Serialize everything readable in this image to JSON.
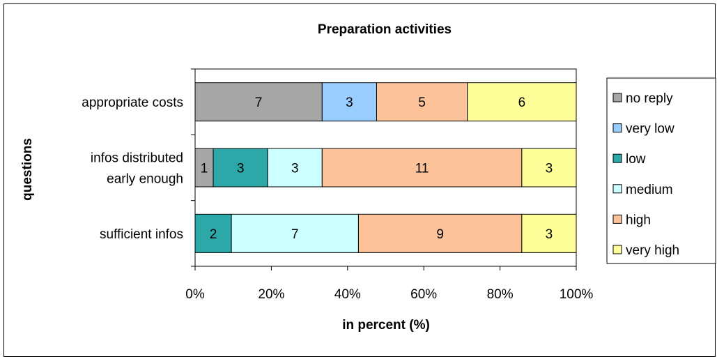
{
  "chart_data": {
    "type": "bar",
    "orientation": "horizontal",
    "stacked": "percent",
    "title": "Preparation activities",
    "xlabel": "in percent (%)",
    "ylabel": "questions",
    "xlim": [
      0,
      100
    ],
    "x_ticks": [
      "0%",
      "20%",
      "40%",
      "60%",
      "80%",
      "100%"
    ],
    "categories": [
      [
        "appropriate costs"
      ],
      [
        "infos distributed",
        "early enough"
      ],
      [
        "sufficient infos"
      ]
    ],
    "series": [
      {
        "name": "no reply",
        "color": "#a6a6a6",
        "values": [
          7,
          1,
          0
        ]
      },
      {
        "name": "very low",
        "color": "#99ccff",
        "values": [
          3,
          0,
          0
        ]
      },
      {
        "name": "low",
        "color": "#2ca8a8",
        "values": [
          0,
          3,
          2
        ]
      },
      {
        "name": "medium",
        "color": "#ccffff",
        "values": [
          0,
          3,
          7
        ]
      },
      {
        "name": "high",
        "color": "#fcc39b",
        "values": [
          5,
          11,
          9
        ]
      },
      {
        "name": "very high",
        "color": "#ffff99",
        "values": [
          6,
          3,
          3
        ]
      }
    ],
    "grid": false,
    "legend_position": "right"
  }
}
